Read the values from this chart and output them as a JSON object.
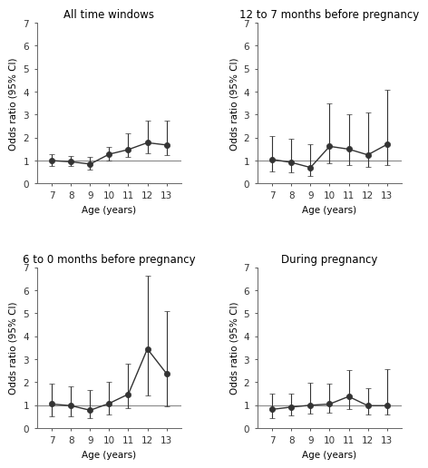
{
  "panels": [
    {
      "title": "All time windows",
      "ages": [
        7,
        8,
        9,
        10,
        11,
        12,
        13
      ],
      "or": [
        1.0,
        0.95,
        0.85,
        1.28,
        1.48,
        1.78,
        1.68
      ],
      "ci_low": [
        0.78,
        0.75,
        0.6,
        1.02,
        1.18,
        1.32,
        1.25
      ],
      "ci_high": [
        1.28,
        1.2,
        1.15,
        1.58,
        2.18,
        2.72,
        2.72
      ]
    },
    {
      "title": "12 to 7 months before pregnancy",
      "ages": [
        7,
        8,
        9,
        10,
        11,
        12,
        13
      ],
      "or": [
        1.05,
        0.92,
        0.7,
        1.62,
        1.5,
        1.25,
        1.7
      ],
      "ci_low": [
        0.52,
        0.5,
        0.35,
        0.88,
        0.82,
        0.72,
        0.82
      ],
      "ci_high": [
        2.05,
        1.95,
        1.72,
        3.5,
        3.0,
        3.1,
        4.1
      ]
    },
    {
      "title": "6 to 0 months before pregnancy",
      "ages": [
        7,
        8,
        9,
        10,
        11,
        12,
        13
      ],
      "or": [
        1.05,
        0.98,
        0.78,
        1.08,
        1.48,
        3.45,
        2.38
      ],
      "ci_low": [
        0.52,
        0.52,
        0.42,
        0.6,
        0.88,
        1.42,
        0.95
      ],
      "ci_high": [
        1.95,
        1.82,
        1.68,
        2.02,
        2.82,
        6.62,
        5.1
      ]
    },
    {
      "title": "During pregnancy",
      "ages": [
        7,
        8,
        9,
        10,
        11,
        12,
        13
      ],
      "or": [
        0.82,
        0.92,
        1.0,
        1.05,
        1.38,
        0.98,
        0.98
      ],
      "ci_low": [
        0.42,
        0.55,
        0.65,
        0.68,
        0.82,
        0.58,
        0.58
      ],
      "ci_high": [
        1.52,
        1.52,
        1.98,
        1.95,
        2.52,
        1.75,
        2.58
      ]
    }
  ],
  "ylim": [
    0,
    7
  ],
  "yticks": [
    0,
    1,
    2,
    3,
    4,
    5,
    6,
    7
  ],
  "ylabel": "Odds ratio (95% CI)",
  "xlabel": "Age (years)",
  "reference_line": 1.0,
  "line_color": "#333333",
  "marker_facecolor": "#333333",
  "marker_edgecolor": "#333333",
  "ref_line_color": "#888888",
  "marker_size": 4.5,
  "linewidth": 1.0,
  "capsize": 2.5,
  "elinewidth": 0.8,
  "background_color": "#ffffff",
  "title_fontsize": 8.5,
  "label_fontsize": 7.5,
  "tick_fontsize": 7.5
}
